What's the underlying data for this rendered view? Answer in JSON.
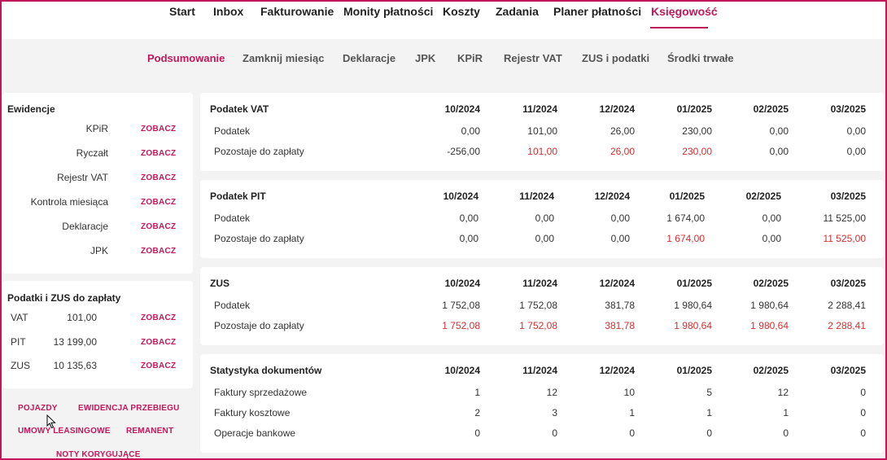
{
  "topnav": {
    "items": [
      "Start",
      "Inbox",
      "Fakturowanie",
      "Monity płatności",
      "Koszty",
      "Zadania",
      "Planer płatności",
      "Księgowość"
    ]
  },
  "subnav": {
    "items": [
      "Podsumowanie",
      "Zamknij miesiąc",
      "Deklaracje",
      "JPK",
      "KPiR",
      "Rejestr VAT",
      "ZUS i podatki",
      "Środki trwałe"
    ]
  },
  "ewidencje": {
    "title": "Ewidencje",
    "action": "ZOBACZ",
    "items": [
      "KPiR",
      "Ryczałt",
      "Rejestr VAT",
      "Kontrola miesiąca",
      "Deklaracje",
      "JPK"
    ]
  },
  "podatki": {
    "title": "Podatki i ZUS do zapłaty",
    "action": "ZOBACZ",
    "items": [
      {
        "name": "VAT",
        "value": "101,00"
      },
      {
        "name": "PIT",
        "value": "13 199,00"
      },
      {
        "name": "ZUS",
        "value": "10 135,63"
      }
    ]
  },
  "links": {
    "pojazdy": "POJAZDY",
    "ewidencja_przebiegu": "EWIDENCJA PRZEBIEGU",
    "umowy_leasingowe": "UMOWY LEASINGOWE",
    "remanent": "REMANENT",
    "noty_korygujace": "NOTY KORYGUJĄCE"
  },
  "months": [
    "10/2024",
    "11/2024",
    "12/2024",
    "01/2025",
    "02/2025",
    "03/2025"
  ],
  "tables": [
    {
      "title": "Podatek VAT",
      "rows": [
        {
          "label": "Podatek",
          "values": [
            "0,00",
            "101,00",
            "26,00",
            "230,00",
            "0,00",
            "0,00"
          ],
          "red": [
            false,
            false,
            false,
            false,
            false,
            false
          ]
        },
        {
          "label": "Pozostaje do zapłaty",
          "values": [
            "-256,00",
            "101,00",
            "26,00",
            "230,00",
            "0,00",
            "0,00"
          ],
          "red": [
            false,
            true,
            true,
            true,
            false,
            false
          ]
        }
      ]
    },
    {
      "title": "Podatek PIT",
      "rows": [
        {
          "label": "Podatek",
          "values": [
            "0,00",
            "0,00",
            "0,00",
            "1 674,00",
            "0,00",
            "11 525,00"
          ],
          "red": [
            false,
            false,
            false,
            false,
            false,
            false
          ]
        },
        {
          "label": "Pozostaje do zapłaty",
          "values": [
            "0,00",
            "0,00",
            "0,00",
            "1 674,00",
            "0,00",
            "11 525,00"
          ],
          "red": [
            false,
            false,
            false,
            true,
            false,
            true
          ]
        }
      ]
    },
    {
      "title": "ZUS",
      "rows": [
        {
          "label": "Podatek",
          "values": [
            "1 752,08",
            "1 752,08",
            "381,78",
            "1 980,64",
            "1 980,64",
            "2 288,41"
          ],
          "red": [
            false,
            false,
            false,
            false,
            false,
            false
          ]
        },
        {
          "label": "Pozostaje do zapłaty",
          "values": [
            "1 752,08",
            "1 752,08",
            "381,78",
            "1 980,64",
            "1 980,64",
            "2 288,41"
          ],
          "red": [
            true,
            true,
            true,
            true,
            true,
            true
          ]
        }
      ]
    },
    {
      "title": "Statystyka dokumentów",
      "rows": [
        {
          "label": "Faktury sprzedażowe",
          "values": [
            "1",
            "12",
            "10",
            "5",
            "12",
            "0"
          ],
          "red": [
            false,
            false,
            false,
            false,
            false,
            false
          ]
        },
        {
          "label": "Faktury kosztowe",
          "values": [
            "2",
            "3",
            "1",
            "1",
            "1",
            "0"
          ],
          "red": [
            false,
            false,
            false,
            false,
            false,
            false
          ]
        },
        {
          "label": "Operacje bankowe",
          "values": [
            "0",
            "0",
            "0",
            "0",
            "0",
            "0"
          ],
          "red": [
            false,
            false,
            false,
            false,
            false,
            false
          ]
        }
      ]
    }
  ],
  "colors": {
    "accent": "#c2185b",
    "negative": "#d32f2f"
  }
}
